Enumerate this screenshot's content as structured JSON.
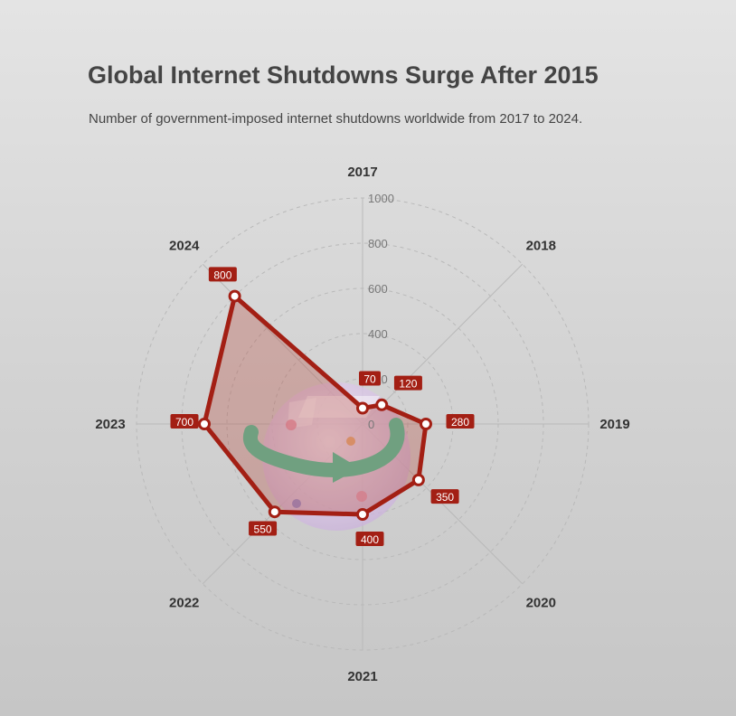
{
  "title": "Global Internet Shutdowns Surge After 2015",
  "subtitle": "Number of government-imposed internet shutdowns worldwide from 2017 to 2024.",
  "chart_data": {
    "type": "radar",
    "categories": [
      "2017",
      "2018",
      "2019",
      "2020",
      "2021",
      "2022",
      "2023",
      "2024"
    ],
    "values": [
      70,
      120,
      280,
      350,
      400,
      550,
      700,
      800
    ],
    "data_labels": [
      "70",
      "120",
      "280",
      "350",
      "400",
      "550",
      "700",
      "800"
    ],
    "radial_ticks": [
      "0",
      "200",
      "400",
      "600",
      "800",
      "1000"
    ],
    "rmax": 1000,
    "grid": true,
    "legend": "none",
    "colors": {
      "line": "#a31f14",
      "fill": "#b84a3f",
      "label_bg": "#a31f14",
      "grid": "#b9b9b9",
      "icon_arrow": "#4ec9a0",
      "icon_sphere": "#d9c3e6"
    }
  }
}
